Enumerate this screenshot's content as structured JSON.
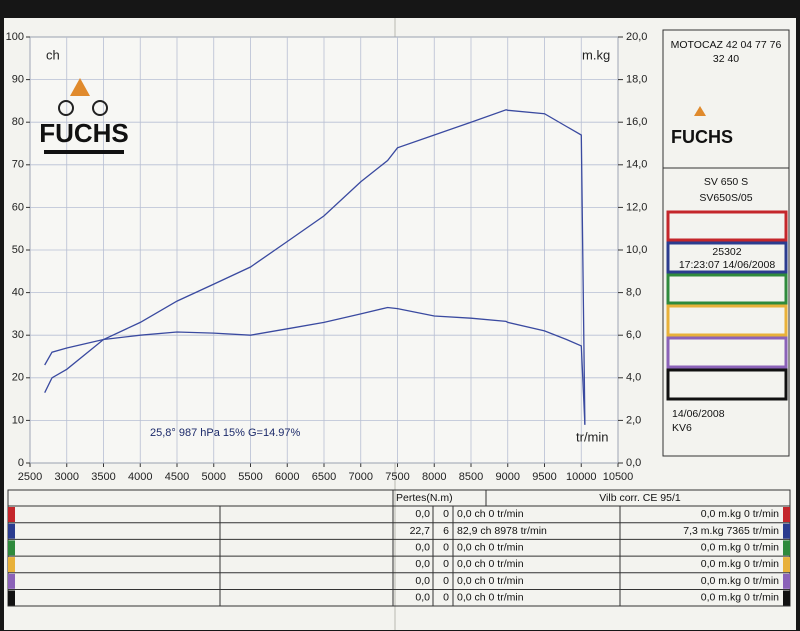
{
  "chart_data": {
    "type": "line",
    "y_label": "ch",
    "y2_label": "m.kg",
    "x_label": "tr/min",
    "annotation": "25,8°  987 hPa  15%   G=14.97%",
    "x": [
      2700,
      2800,
      3000,
      3500,
      4000,
      4500,
      5000,
      5500,
      6000,
      6500,
      7000,
      7365,
      7500,
      8000,
      8500,
      8978,
      9000,
      9500,
      9800,
      10000,
      10050
    ],
    "series": [
      {
        "color": "#3a4aa0",
        "values": [
          16.5,
          20,
          22,
          29,
          33,
          38,
          42,
          46,
          52,
          58,
          66,
          71,
          74,
          77,
          80,
          82.9,
          82.8,
          82,
          79,
          77,
          9
        ]
      },
      {
        "color": "#3a4aa0",
        "axis": "y2",
        "values": [
          4.6,
          5.2,
          5.4,
          5.8,
          6.0,
          6.15,
          6.1,
          6.0,
          6.3,
          6.6,
          7.0,
          7.3,
          7.25,
          6.9,
          6.8,
          6.65,
          6.6,
          6.2,
          5.8,
          5.5,
          1.8
        ]
      }
    ],
    "xlim": [
      2500,
      10500
    ],
    "xticks": [
      2500,
      3000,
      3500,
      4000,
      4500,
      5000,
      5500,
      6000,
      6500,
      7000,
      7500,
      8000,
      8500,
      9000,
      9500,
      10000,
      10500
    ],
    "ylim": [
      0,
      100
    ],
    "yticks": [
      0,
      10,
      20,
      30,
      40,
      50,
      60,
      70,
      80,
      90,
      100
    ],
    "y2lim": [
      0,
      20
    ],
    "y2ticks": [
      {
        "value": 0,
        "label": "0,0"
      },
      {
        "value": 2,
        "label": "2,0"
      },
      {
        "value": 4,
        "label": "4,0"
      },
      {
        "value": 6,
        "label": "6,0"
      },
      {
        "value": 8,
        "label": "8,0"
      },
      {
        "value": 10,
        "label": "10,0"
      },
      {
        "value": 12,
        "label": "12,0"
      },
      {
        "value": 14,
        "label": "14,0"
      },
      {
        "value": 16,
        "label": "16,0"
      },
      {
        "value": 18,
        "label": "18,0"
      },
      {
        "value": 20,
        "label": "20,0"
      }
    ],
    "grid": true
  },
  "side_panel": {
    "company": "MOTOCAZ 42  04 77 76",
    "phone": "32 40",
    "logo": "FUCHS",
    "model": "SV 650 S",
    "file": "SV650S/05",
    "run": "25302",
    "time": "17:23:07  14/06/2008",
    "date": "14/06/2008",
    "operator": "KV6"
  },
  "table": {
    "header": [
      "Pertes(N.m)",
      "Vilb corr. CE 95/1"
    ],
    "rows": [
      [
        "0,0",
        "0",
        "0,0 ch 0 tr/min",
        "0,0 m.kg 0 tr/min"
      ],
      [
        "22,7",
        "6",
        "82,9 ch 8978 tr/min",
        "7,3 m.kg 7365 tr/min"
      ],
      [
        "0,0",
        "0",
        "0,0 ch 0 tr/min",
        "0,0 m.kg 0 tr/min"
      ],
      [
        "0,0",
        "0",
        "0,0 ch 0 tr/min",
        "0,0 m.kg 0 tr/min"
      ],
      [
        "0,0",
        "0",
        "0,0 ch 0 tr/min",
        "0,0 m.kg 0 tr/min"
      ],
      [
        "0,0",
        "0",
        "0,0 ch 0 tr/min",
        "0,0 m.kg 0 tr/min"
      ]
    ]
  }
}
